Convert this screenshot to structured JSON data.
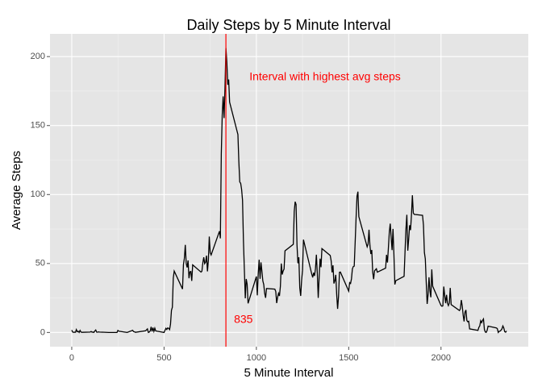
{
  "chart_data": {
    "type": "line",
    "title": "Daily Steps by 5 Minute Interval",
    "x_label": "5 Minute Interval",
    "y_label": "Average Steps",
    "x": [
      0,
      5,
      10,
      15,
      20,
      25,
      30,
      35,
      40,
      45,
      50,
      55,
      100,
      105,
      110,
      115,
      120,
      125,
      130,
      135,
      140,
      145,
      150,
      200,
      230,
      245,
      250,
      255,
      300,
      330,
      335,
      340,
      345,
      400,
      410,
      415,
      420,
      425,
      430,
      435,
      440,
      445,
      450,
      455,
      500,
      505,
      510,
      515,
      520,
      525,
      530,
      535,
      540,
      545,
      550,
      555,
      600,
      605,
      610,
      615,
      620,
      625,
      630,
      635,
      640,
      645,
      650,
      655,
      700,
      705,
      710,
      715,
      720,
      725,
      730,
      735,
      740,
      745,
      750,
      755,
      800,
      805,
      810,
      815,
      820,
      825,
      830,
      835,
      840,
      845,
      850,
      855,
      900,
      905,
      910,
      915,
      920,
      925,
      930,
      935,
      940,
      945,
      950,
      955,
      1000,
      1005,
      1010,
      1015,
      1020,
      1025,
      1030,
      1035,
      1040,
      1045,
      1050,
      1055,
      1100,
      1105,
      1110,
      1115,
      1120,
      1125,
      1130,
      1135,
      1140,
      1145,
      1150,
      1155,
      1200,
      1205,
      1210,
      1215,
      1220,
      1225,
      1230,
      1235,
      1240,
      1245,
      1250,
      1255,
      1300,
      1305,
      1310,
      1315,
      1320,
      1325,
      1330,
      1335,
      1340,
      1345,
      1350,
      1355,
      1400,
      1405,
      1410,
      1415,
      1420,
      1425,
      1430,
      1435,
      1440,
      1445,
      1450,
      1455,
      1500,
      1505,
      1510,
      1515,
      1520,
      1525,
      1530,
      1535,
      1540,
      1545,
      1550,
      1555,
      1600,
      1605,
      1610,
      1615,
      1620,
      1625,
      1630,
      1635,
      1640,
      1645,
      1650,
      1655,
      1700,
      1705,
      1710,
      1715,
      1720,
      1725,
      1730,
      1735,
      1740,
      1745,
      1750,
      1755,
      1800,
      1805,
      1810,
      1815,
      1820,
      1825,
      1830,
      1835,
      1840,
      1845,
      1850,
      1855,
      1900,
      1905,
      1910,
      1915,
      1920,
      1925,
      1930,
      1935,
      1940,
      1945,
      1950,
      1955,
      2000,
      2005,
      2010,
      2015,
      2020,
      2025,
      2030,
      2035,
      2040,
      2045,
      2050,
      2055,
      2100,
      2105,
      2110,
      2115,
      2120,
      2125,
      2130,
      2135,
      2140,
      2145,
      2150,
      2155,
      2200,
      2205,
      2210,
      2215,
      2220,
      2225,
      2230,
      2235,
      2240,
      2245,
      2250,
      2255,
      2300,
      2305,
      2310,
      2315,
      2320,
      2325,
      2330,
      2335,
      2340,
      2345,
      2350,
      2355
    ],
    "series": [
      {
        "color": "#000000",
        "values": [
          1.7,
          0.3,
          0.1,
          0.2,
          0.1,
          2.1,
          0.5,
          0.9,
          0,
          1.5,
          0.3,
          0.1,
          0.3,
          0.7,
          0.2,
          0.3,
          0,
          1.1,
          1.8,
          0.2,
          0.2,
          0.4,
          0.3,
          0,
          0,
          0,
          1.5,
          0.9,
          0,
          1.6,
          0.6,
          0.5,
          0.1,
          1.2,
          2.6,
          0,
          0.3,
          1.1,
          4.1,
          0.7,
          3.5,
          0.8,
          3.1,
          1.1,
          0,
          1.6,
          3,
          2.2,
          3.3,
          3,
          2.1,
          6.1,
          16,
          18.3,
          39.5,
          44.5,
          31.5,
          49.3,
          53.8,
          63.5,
          50,
          47.1,
          52.2,
          39.3,
          44,
          44.2,
          37.4,
          49,
          43.8,
          44.4,
          50.5,
          54.5,
          49.9,
          51,
          55.7,
          44.3,
          52.3,
          69.5,
          57.8,
          56.2,
          73.4,
          68.2,
          129.4,
          157.5,
          171.2,
          155.4,
          177.3,
          206.2,
          195.9,
          179.6,
          183.4,
          167,
          143.5,
          124,
          109.1,
          108.1,
          103.7,
          95.9,
          66.2,
          45.2,
          24.8,
          38.8,
          35,
          21.1,
          40.6,
          26.9,
          42.4,
          52.7,
          38.9,
          50.8,
          44.3,
          37.4,
          34.7,
          28.3,
          25.1,
          31.9,
          31.4,
          29.7,
          21.3,
          25.5,
          28.4,
          26.5,
          33.4,
          50,
          42,
          44.6,
          46,
          59.2,
          63.9,
          87.7,
          94.8,
          92.8,
          63.4,
          50.2,
          54.5,
          32.4,
          26.5,
          37.7,
          45.1,
          67.3,
          42.3,
          39.9,
          43.3,
          41,
          46.2,
          56.4,
          42.8,
          25.1,
          40,
          53.5,
          47.3,
          60.8,
          55.8,
          52,
          43.6,
          48.7,
          35.5,
          37.5,
          41.8,
          27.5,
          17.1,
          26.1,
          43.6,
          43.8,
          30,
          36.1,
          35.5,
          38.8,
          46,
          47.8,
          48.1,
          65.3,
          82.9,
          98.7,
          102.1,
          84,
          62.1,
          64.1,
          74.5,
          63.2,
          56.9,
          59.8,
          43.9,
          38.6,
          44.7,
          45.5,
          46.2,
          43.7,
          46.6,
          56.3,
          50.7,
          61.2,
          72.7,
          78.9,
          68.9,
          59.7,
          75.1,
          56.5,
          34.8,
          37.5,
          40.7,
          58,
          74.7,
          85.3,
          59.3,
          67.8,
          77.7,
          74.2,
          85.3,
          99.5,
          86.6,
          85.6,
          84.9,
          77.8,
          58,
          53.4,
          36.3,
          20.7,
          27.4,
          40,
          30.2,
          25.5,
          45.7,
          33.5,
          19.6,
          19,
          19.3,
          33.3,
          26.8,
          21.2,
          27.3,
          21.3,
          19.5,
          21.3,
          32.3,
          20.2,
          15.9,
          17.2,
          23.5,
          19.2,
          12.5,
          8,
          14.7,
          16.3,
          8.7,
          7.8,
          8.1,
          2.6,
          1.5,
          3.7,
          4.8,
          8.5,
          7.1,
          8.7,
          9.8,
          2.2,
          0.3,
          0.1,
          1.6,
          4.6,
          3.3,
          2.8,
          0,
          0.8,
          1,
          1.6,
          2.6,
          4.7,
          3.3,
          0.6,
          0.2,
          1.1
        ]
      }
    ],
    "xlim": [
      -117.75,
      2472.75
    ],
    "xticks": [
      0,
      500,
      1000,
      1500,
      2000
    ],
    "ylim": [
      -10.31,
      216.48
    ],
    "yticks": [
      0,
      50,
      100,
      150,
      200
    ],
    "grid": true,
    "vline": {
      "value": 835,
      "label": "835",
      "color": "#ff0000"
    },
    "annotation": {
      "text": "Interval with highest avg steps",
      "color": "#ff0000"
    }
  }
}
